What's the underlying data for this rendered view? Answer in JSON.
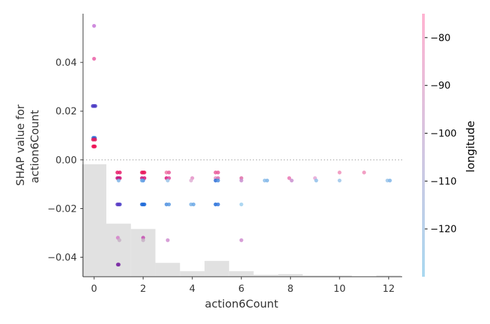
{
  "chart_data": {
    "type": "scatter",
    "title": "",
    "xlabel": "action6Count",
    "ylabel": [
      "SHAP value for",
      "action6Count"
    ],
    "xlim": [
      -0.45,
      12.55
    ],
    "ylim": [
      -0.048,
      0.06
    ],
    "x_ticks": [
      0,
      2,
      4,
      6,
      8,
      10,
      12
    ],
    "y_ticks": [
      -0.04,
      -0.02,
      0.0,
      0.02,
      0.04
    ],
    "y_tick_labels": [
      "−0.04",
      "−0.02",
      "0.00",
      "0.02",
      "0.04"
    ],
    "zero_line": true,
    "grid": false,
    "histogram": {
      "color": "#e1e1e1",
      "bins": [
        {
          "x0": -0.5,
          "x1": 0.5,
          "top": -0.0018
        },
        {
          "x0": 0.5,
          "x1": 1.5,
          "top": -0.0262
        },
        {
          "x0": 1.5,
          "x1": 2.5,
          "top": -0.0284
        },
        {
          "x0": 2.5,
          "x1": 3.5,
          "top": -0.0423
        },
        {
          "x0": 3.5,
          "x1": 4.5,
          "top": -0.0457
        },
        {
          "x0": 4.5,
          "x1": 5.5,
          "top": -0.0415
        },
        {
          "x0": 5.5,
          "x1": 6.5,
          "top": -0.0457
        },
        {
          "x0": 6.5,
          "x1": 7.5,
          "top": -0.0472
        },
        {
          "x0": 7.5,
          "x1": 8.5,
          "top": -0.0469
        },
        {
          "x0": 8.5,
          "x1": 9.5,
          "top": -0.0475
        },
        {
          "x0": 9.5,
          "x1": 10.5,
          "top": -0.0475
        },
        {
          "x0": 10.5,
          "x1": 11.5,
          "top": -0.0479
        },
        {
          "x0": 11.5,
          "x1": 12.5,
          "top": -0.0475
        }
      ]
    },
    "colorbar": {
      "label": "longitude",
      "range": [
        -130,
        -75
      ],
      "ticks": [
        -80,
        -90,
        -100,
        -110,
        -120
      ],
      "tick_labels": [
        "−80",
        "−90",
        "−100",
        "−110",
        "−120"
      ],
      "color_high": "#ffb3d1",
      "color_low": "#a9d8f0"
    },
    "points": [
      {
        "x": 0.0,
        "y": 0.055,
        "c": "#c777d7"
      },
      {
        "x": 0.0,
        "y": 0.0415,
        "c": "#ea5fa6"
      },
      {
        "x": -0.05,
        "y": 0.0221,
        "c": "#4a3bc4"
      },
      {
        "x": 0.0,
        "y": 0.0221,
        "c": "#5340c6"
      },
      {
        "x": 0.05,
        "y": 0.0221,
        "c": "#4a3bc4"
      },
      {
        "x": -0.03,
        "y": 0.009,
        "c": "#1f6bd8"
      },
      {
        "x": 0.03,
        "y": 0.009,
        "c": "#2a6ad6"
      },
      {
        "x": 0.0,
        "y": 0.0086,
        "c": "#3857c8"
      },
      {
        "x": -0.04,
        "y": 0.0083,
        "c": "#e81a5c"
      },
      {
        "x": 0.04,
        "y": 0.0083,
        "c": "#e81a5c"
      },
      {
        "x": -0.03,
        "y": 0.0055,
        "c": "#ee1457"
      },
      {
        "x": 0.03,
        "y": 0.0055,
        "c": "#ee1457"
      },
      {
        "x": 0.0,
        "y": 0.0055,
        "c": "#ee1457"
      },
      {
        "x": 0.95,
        "y": -0.0052,
        "c": "#e91b6a"
      },
      {
        "x": 1.05,
        "y": -0.0052,
        "c": "#e91b6a"
      },
      {
        "x": 0.95,
        "y": -0.0075,
        "c": "#c2147c"
      },
      {
        "x": 1.05,
        "y": -0.0075,
        "c": "#d8177a"
      },
      {
        "x": 1.0,
        "y": -0.0075,
        "c": "#c2147c"
      },
      {
        "x": 1.0,
        "y": -0.0085,
        "c": "#7fb5e8"
      },
      {
        "x": 0.95,
        "y": -0.0183,
        "c": "#5a3cc6"
      },
      {
        "x": 1.05,
        "y": -0.0183,
        "c": "#4a42c9"
      },
      {
        "x": 1.0,
        "y": -0.0183,
        "c": "#5a3cc6"
      },
      {
        "x": 0.97,
        "y": -0.032,
        "c": "#d47fc9"
      },
      {
        "x": 1.03,
        "y": -0.033,
        "c": "#c7b0c6"
      },
      {
        "x": 1.0,
        "y": -0.043,
        "c": "#7a2aa3"
      },
      {
        "x": 0.97,
        "y": -0.043,
        "c": "#7a2aa3"
      },
      {
        "x": 1.95,
        "y": -0.0052,
        "c": "#e91b5d"
      },
      {
        "x": 2.05,
        "y": -0.0052,
        "c": "#e91b5d"
      },
      {
        "x": 2.0,
        "y": -0.0052,
        "c": "#e91b5d"
      },
      {
        "x": 1.95,
        "y": -0.0075,
        "c": "#c2147c"
      },
      {
        "x": 2.05,
        "y": -0.0075,
        "c": "#d8177a"
      },
      {
        "x": 2.0,
        "y": -0.0085,
        "c": "#4f8fe0"
      },
      {
        "x": 1.95,
        "y": -0.0085,
        "c": "#6aa7e6"
      },
      {
        "x": 1.95,
        "y": -0.0183,
        "c": "#1f6bd8"
      },
      {
        "x": 2.05,
        "y": -0.0183,
        "c": "#1f6bd8"
      },
      {
        "x": 2.0,
        "y": -0.0183,
        "c": "#1f6bd8"
      },
      {
        "x": 2.0,
        "y": -0.032,
        "c": "#c44bb0"
      },
      {
        "x": 2.0,
        "y": -0.033,
        "c": "#c7b0c6"
      },
      {
        "x": 2.95,
        "y": -0.0052,
        "c": "#f07aa8"
      },
      {
        "x": 3.05,
        "y": -0.0052,
        "c": "#e95a9a"
      },
      {
        "x": 2.95,
        "y": -0.0075,
        "c": "#d8177a"
      },
      {
        "x": 3.05,
        "y": -0.0075,
        "c": "#e0479c"
      },
      {
        "x": 3.0,
        "y": -0.0085,
        "c": "#9cc6ea"
      },
      {
        "x": 2.95,
        "y": -0.0183,
        "c": "#4f8fe0"
      },
      {
        "x": 3.05,
        "y": -0.0183,
        "c": "#5d9be2"
      },
      {
        "x": 3.0,
        "y": -0.033,
        "c": "#d08ed0"
      },
      {
        "x": 4.0,
        "y": -0.0075,
        "c": "#e58fc7"
      },
      {
        "x": 3.95,
        "y": -0.0085,
        "c": "#e0b2d6"
      },
      {
        "x": 3.95,
        "y": -0.0183,
        "c": "#7fb5e8"
      },
      {
        "x": 4.05,
        "y": -0.0183,
        "c": "#6aa7e6"
      },
      {
        "x": 4.95,
        "y": -0.0052,
        "c": "#e95a9a"
      },
      {
        "x": 5.05,
        "y": -0.0052,
        "c": "#e95a9a"
      },
      {
        "x": 4.95,
        "y": -0.0075,
        "c": "#e08fbf"
      },
      {
        "x": 5.05,
        "y": -0.0075,
        "c": "#d86fb0"
      },
      {
        "x": 4.95,
        "y": -0.0085,
        "c": "#2a6ad6"
      },
      {
        "x": 5.05,
        "y": -0.0085,
        "c": "#4f8fe0"
      },
      {
        "x": 4.95,
        "y": -0.0183,
        "c": "#1f6bd8"
      },
      {
        "x": 5.05,
        "y": -0.0183,
        "c": "#3a7ade"
      },
      {
        "x": 6.0,
        "y": -0.0075,
        "c": "#e06fa8"
      },
      {
        "x": 6.0,
        "y": -0.0085,
        "c": "#c98fd0"
      },
      {
        "x": 6.0,
        "y": -0.0183,
        "c": "#9fd0f0"
      },
      {
        "x": 6.0,
        "y": -0.033,
        "c": "#d08ed0"
      },
      {
        "x": 6.95,
        "y": -0.0085,
        "c": "#8fc0ea"
      },
      {
        "x": 7.05,
        "y": -0.0085,
        "c": "#7fb5e8"
      },
      {
        "x": 7.95,
        "y": -0.0075,
        "c": "#ea77b4"
      },
      {
        "x": 8.05,
        "y": -0.0085,
        "c": "#c98fd0"
      },
      {
        "x": 9.0,
        "y": -0.0075,
        "c": "#e5a6d6"
      },
      {
        "x": 9.05,
        "y": -0.0085,
        "c": "#8fc0ea"
      },
      {
        "x": 10.0,
        "y": -0.0052,
        "c": "#f08fba"
      },
      {
        "x": 10.0,
        "y": -0.0085,
        "c": "#9cc6ea"
      },
      {
        "x": 11.0,
        "y": -0.0052,
        "c": "#f08fba"
      },
      {
        "x": 11.95,
        "y": -0.0085,
        "c": "#9cc6ea"
      },
      {
        "x": 12.05,
        "y": -0.0085,
        "c": "#7fb5e8"
      }
    ]
  }
}
